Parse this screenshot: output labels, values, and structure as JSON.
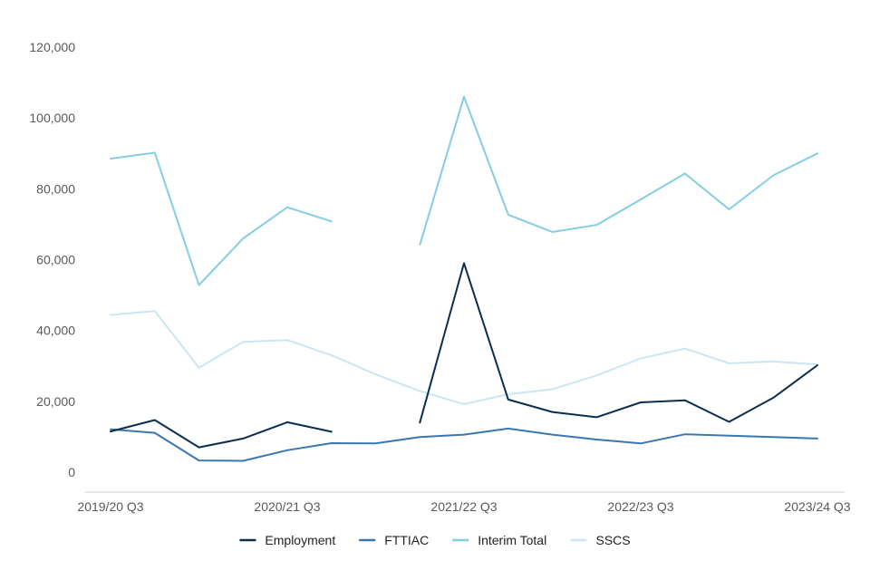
{
  "chart_data": {
    "type": "line",
    "title": "",
    "xlabel": "",
    "ylabel": "",
    "x": [
      "2019/20 Q3",
      "2019/20 Q4",
      "2020/21 Q1",
      "2020/21 Q2",
      "2020/21 Q3",
      "2020/21 Q4",
      "2021/22 Q1",
      "2021/22 Q2",
      "2021/22 Q3",
      "2021/22 Q4",
      "2022/23 Q1",
      "2022/23 Q2",
      "2022/23 Q3",
      "2022/23 Q4",
      "2023/24 Q1",
      "2023/24 Q2",
      "2023/24 Q3"
    ],
    "x_tick_labels": [
      "2019/20 Q3",
      "2020/21 Q3",
      "2021/22 Q3",
      "2022/23 Q3",
      "2023/24 Q3"
    ],
    "y_ticks": [
      0,
      20000,
      40000,
      60000,
      80000,
      100000,
      120000
    ],
    "y_tick_labels": [
      "0",
      "20,000",
      "40,000",
      "60,000",
      "80,000",
      "100,000",
      "120,000"
    ],
    "ylim": [
      -5000,
      125000
    ],
    "grid": false,
    "legend_position": "bottom",
    "series": [
      {
        "name": "Employment",
        "color": "#0b2e4f",
        "values": [
          11500,
          14700,
          7000,
          9500,
          14100,
          11400,
          null,
          14000,
          59000,
          20500,
          17000,
          15500,
          19700,
          20300,
          14200,
          21000,
          30200
        ]
      },
      {
        "name": "FTTIAC",
        "color": "#3a77b0",
        "values": [
          12100,
          11100,
          3300,
          3200,
          6200,
          8200,
          8100,
          9900,
          10600,
          12300,
          10600,
          9200,
          8100,
          10700,
          10300,
          9900,
          9500
        ]
      },
      {
        "name": "Interim Total",
        "color": "#84cde3",
        "values": [
          88500,
          90200,
          52800,
          66000,
          74800,
          70800,
          null,
          64200,
          106000,
          72700,
          67800,
          69800,
          77000,
          84300,
          74200,
          83800,
          90000
        ]
      },
      {
        "name": "SSCS",
        "color": "#c9e6f1",
        "values": [
          44400,
          45500,
          29500,
          36800,
          37300,
          33000,
          27600,
          22900,
          19200,
          22000,
          23400,
          27300,
          32100,
          34900,
          30700,
          31300,
          30400
        ]
      }
    ]
  }
}
